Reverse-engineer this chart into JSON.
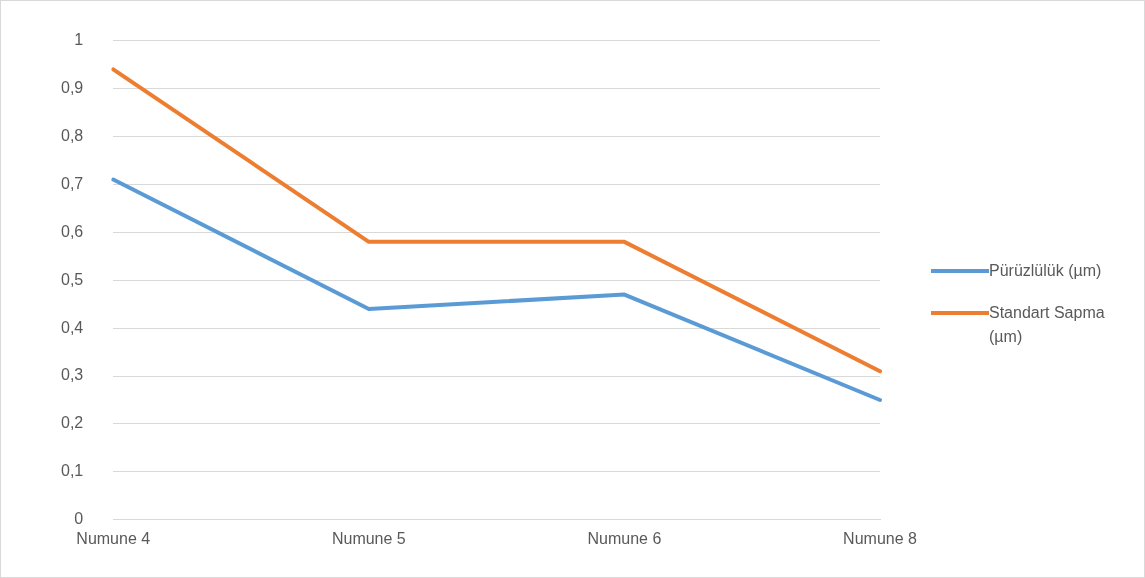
{
  "chart_data": {
    "type": "line",
    "categories": [
      "Numune 4",
      "Numune 5",
      "Numune 6",
      "Numune 8"
    ],
    "series": [
      {
        "name": "Pürüzlülük (µm)",
        "color": "#5b9bd5",
        "values": [
          0.71,
          0.44,
          0.47,
          0.25
        ]
      },
      {
        "name": "Standart Sapma (µm)",
        "color": "#ed7d31",
        "values": [
          0.94,
          0.58,
          0.58,
          0.31
        ]
      }
    ],
    "ylim": [
      0,
      1
    ],
    "yticks": [
      0,
      {
        "value": 0.1,
        "label": "0,1"
      },
      {
        "value": 0.2,
        "label": "0,2"
      },
      {
        "value": 0.3,
        "label": "0,3"
      },
      {
        "value": 0.4,
        "label": "0,4"
      },
      {
        "value": 0.5,
        "label": "0,5"
      },
      {
        "value": 0.6,
        "label": "0,6"
      },
      {
        "value": 0.7,
        "label": "0,7"
      },
      {
        "value": 0.8,
        "label": "0,8"
      },
      {
        "value": 0.9,
        "label": "0,9"
      },
      1
    ],
    "grid": "y",
    "legend": "right",
    "marker": "none",
    "line_style": "solid"
  }
}
